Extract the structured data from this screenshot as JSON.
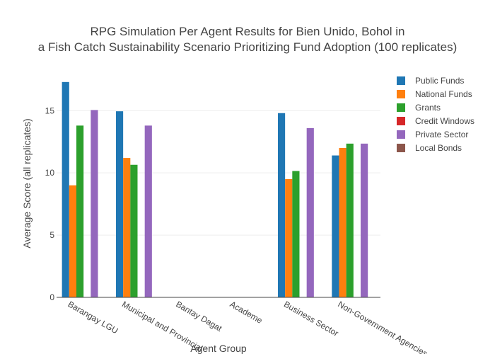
{
  "chart_data": {
    "type": "bar",
    "title_lines": [
      "RPG Simulation Per Agent Results for Bien Unido, Bohol in",
      "a Fish Catch Sustainability Scenario Prioritizing Fund Adoption (100 replicates)"
    ],
    "xlabel": "Agent Group",
    "ylabel": "Average Score (all replicates)",
    "ylim": [
      0,
      18.2
    ],
    "yticks": [
      0,
      5,
      10,
      15
    ],
    "grid": true,
    "legend_position": "top-right",
    "categories": [
      "Barangay LGU",
      "Municipal and Provincial",
      "Bantay Dagat",
      "Academe",
      "Business Sector",
      "Non-Government Agencies"
    ],
    "series": [
      {
        "name": "Public Funds",
        "color": "#1f77b4",
        "values": [
          17.3,
          14.95,
          0,
          0,
          14.8,
          11.4
        ]
      },
      {
        "name": "National Funds",
        "color": "#ff7f0e",
        "values": [
          9.0,
          11.2,
          0,
          0,
          9.5,
          12.0
        ]
      },
      {
        "name": "Grants",
        "color": "#2ca02c",
        "values": [
          13.8,
          10.65,
          0,
          0,
          10.15,
          12.35
        ]
      },
      {
        "name": "Credit Windows",
        "color": "#d62728",
        "values": [
          0,
          0,
          0,
          0,
          0,
          0
        ]
      },
      {
        "name": "Private Sector",
        "color": "#9467bd",
        "values": [
          15.05,
          13.8,
          0,
          0,
          13.6,
          12.35
        ]
      },
      {
        "name": "Local Bonds",
        "color": "#8c564b",
        "values": [
          0,
          0,
          0,
          0,
          0,
          0
        ]
      }
    ]
  }
}
